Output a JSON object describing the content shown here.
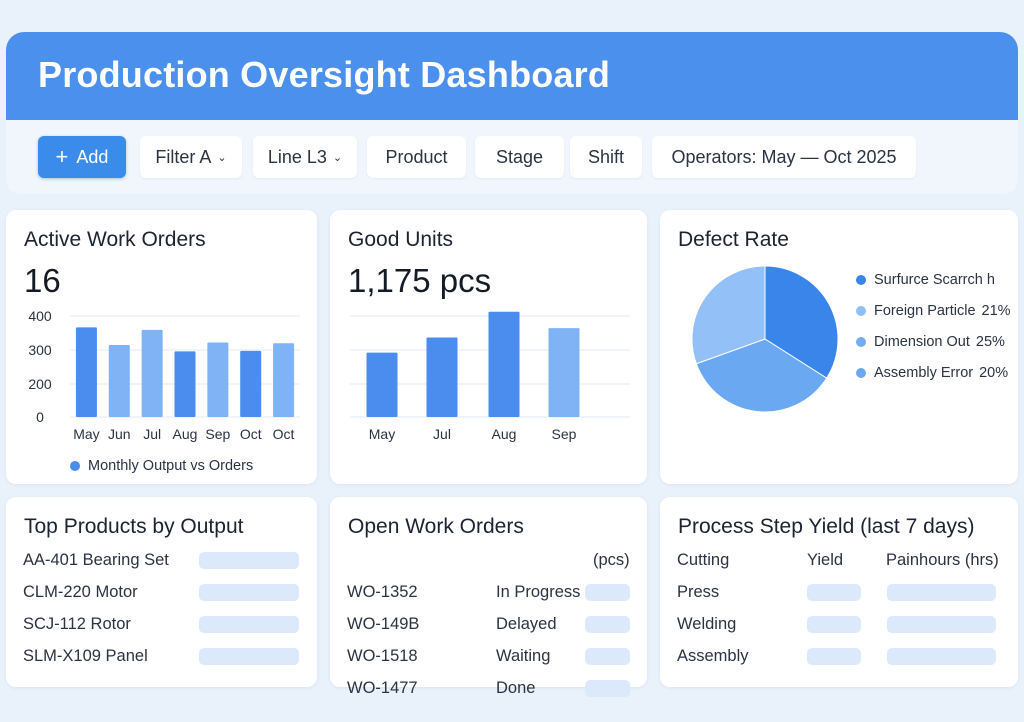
{
  "header": {
    "title": "Production Oversight Dashboard"
  },
  "toolbar": {
    "add_label": "Add",
    "filter_a": "Filter A",
    "line": "Line L3",
    "product": "Product",
    "stage": "Stage",
    "shift": "Shift",
    "operators": "Operators: May — Oct 2025"
  },
  "colors": {
    "header": "#4a90ec",
    "accent": "#3b8bea",
    "bar_dark": "#4a8def",
    "bar_light": "#7fb3f5",
    "pill": "#dbe9fb"
  },
  "active_work_orders": {
    "title": "Active Work Orders",
    "value": "16",
    "legend": "Monthly Output vs Orders"
  },
  "good_units": {
    "title": "Good Units",
    "value": "1,175 pcs"
  },
  "defect_rate": {
    "title": "Defect Rate",
    "legend": [
      {
        "label": "Surfurce Scarrch h",
        "pct": "",
        "color": "#3a85ea"
      },
      {
        "label": "Foreign Particle",
        "pct": "21%",
        "color": "#8fbff6"
      },
      {
        "label": "Dimension Out",
        "pct": "25%",
        "color": "#74acf1"
      },
      {
        "label": "Assembly Error",
        "pct": "20%",
        "color": "#6aa8f2"
      }
    ]
  },
  "top_products": {
    "title": "Top Products by Output",
    "items": [
      "AA-401 Bearing Set",
      "CLM-220 Motor",
      "SCJ-112 Rotor",
      "SLM-X109 Panel"
    ]
  },
  "open_work_orders": {
    "title": "Open Work Orders",
    "unit_header": "(pcs)",
    "rows": [
      {
        "id": "WO-1352",
        "status": "In Progress"
      },
      {
        "id": "WO-149B",
        "status": "Delayed"
      },
      {
        "id": "WO-1518",
        "status": "Waiting"
      },
      {
        "id": "WO-1477",
        "status": "Done"
      }
    ]
  },
  "process_yield": {
    "title": "Process Step Yield (last  7 days)",
    "col_step": "Cutting",
    "col_yield": "Yield",
    "col_hours": "Painhours (hrs)",
    "steps": [
      "Press",
      "Welding",
      "Assembly"
    ]
  },
  "chart_data": [
    {
      "type": "bar",
      "categories": [
        "May",
        "Jun",
        "Jul",
        "Aug",
        "Sep",
        "Oct",
        "Oct"
      ],
      "series": [
        {
          "name": "Monthly Output vs Orders",
          "values": [
            355,
            285,
            345,
            260,
            295,
            262,
            292
          ]
        }
      ],
      "ylim": [
        0,
        400
      ],
      "yticks": [
        "400",
        "300",
        "200",
        "0"
      ],
      "grid": true,
      "legend": "bottom"
    },
    {
      "type": "bar",
      "categories": [
        "May",
        "Jul",
        "Aug",
        "Sep"
      ],
      "values": [
        55,
        68,
        90,
        76
      ],
      "grid": true
    },
    {
      "type": "pie",
      "slices": [
        {
          "label": "Surfurce Scarrch h",
          "value": 34
        },
        {
          "label": "Foreign Particle",
          "value": 21
        },
        {
          "label": "Dimension Out",
          "value": 25
        },
        {
          "label": "Assembly Error",
          "value": 20
        }
      ]
    }
  ]
}
